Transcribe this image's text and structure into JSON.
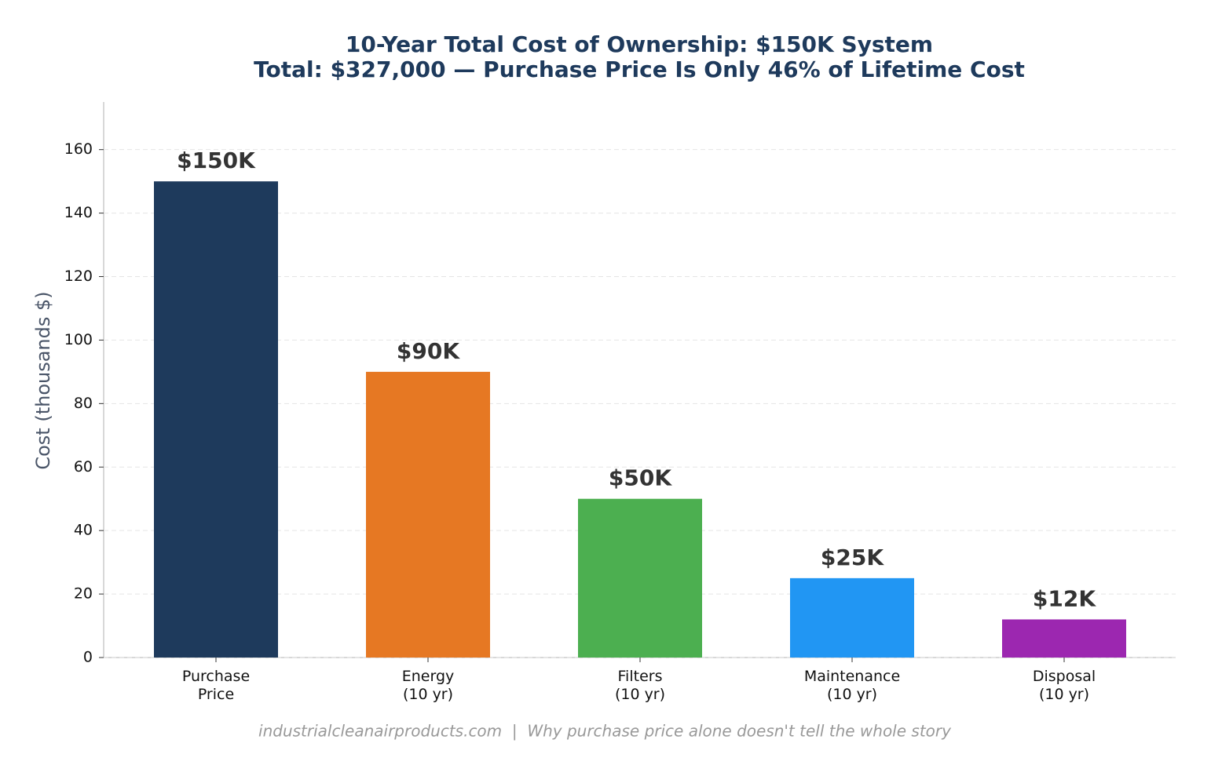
{
  "chart_data": {
    "type": "bar",
    "title": "10-Year Total Cost of Ownership: $150K System",
    "subtitle": "Total: $327,000 — Purchase Price Is Only 46% of Lifetime Cost",
    "y_label": "Cost (thousands $)",
    "footer": "industrialcleanairproducts.com  |  Why purchase price alone doesn't tell the whole story",
    "categories": [
      "Purchase\nPrice",
      "Energy\n(10 yr)",
      "Filters\n(10 yr)",
      "Maintenance\n(10 yr)",
      "Disposal\n(10 yr)"
    ],
    "values": [
      150,
      90,
      50,
      25,
      12
    ],
    "value_labels": [
      "$150K",
      "$90K",
      "$50K",
      "$25K",
      "$12K"
    ],
    "colors": [
      "#1e3a5c",
      "#e67823",
      "#4caf50",
      "#2196f3",
      "#9c27b0"
    ],
    "ylim": [
      0,
      175
    ],
    "yticks": [
      0,
      20,
      40,
      60,
      80,
      100,
      120,
      140,
      160
    ],
    "grid": true
  }
}
